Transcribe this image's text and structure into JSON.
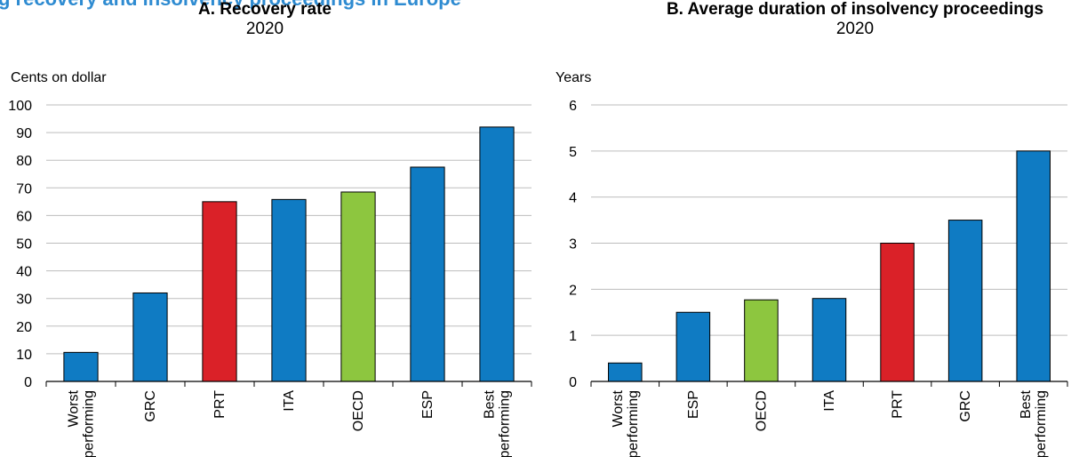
{
  "page_heading": "g recovery and insolvency proceedings in Europe",
  "colors": {
    "default": "#0F7BC3",
    "highlight": "#DA2128",
    "oecd": "#8DC63F",
    "grid": "#bdbdbd",
    "heading": "#2E8BD1"
  },
  "chart_data": [
    {
      "type": "bar",
      "title": "A. Recovery rate",
      "subtitle": "2020",
      "ylabel": "Cents on dollar",
      "ylim": [
        0,
        100
      ],
      "yticks": [
        0,
        10,
        20,
        30,
        40,
        50,
        60,
        70,
        80,
        90,
        100
      ],
      "grid": true,
      "categories": [
        "Worst performing",
        "GRC",
        "PRT",
        "ITA",
        "OECD",
        "ESP",
        "Best performing"
      ],
      "values": [
        10.5,
        32,
        65,
        65.8,
        68.5,
        77.5,
        92
      ],
      "bar_colors": [
        "default",
        "default",
        "highlight",
        "default",
        "oecd",
        "default",
        "default"
      ]
    },
    {
      "type": "bar",
      "title": "B. Average duration of insolvency proceedings",
      "subtitle": "2020",
      "ylabel": "Years",
      "ylim": [
        0,
        6
      ],
      "yticks": [
        0,
        1,
        2,
        3,
        4,
        5,
        6
      ],
      "grid": true,
      "categories": [
        "Worst performing",
        "ESP",
        "OECD",
        "ITA",
        "PRT",
        "GRC",
        "Best performing"
      ],
      "values": [
        0.4,
        1.5,
        1.77,
        1.8,
        3,
        3.5,
        5
      ],
      "bar_colors": [
        "default",
        "default",
        "oecd",
        "default",
        "highlight",
        "default",
        "default"
      ]
    }
  ]
}
